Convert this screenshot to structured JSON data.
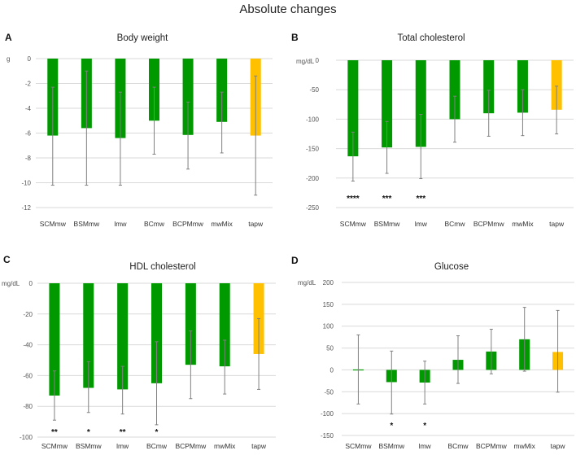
{
  "chart_data": {
    "main_title": "Absolute changes",
    "colors": {
      "green": "#009900",
      "orange": "#FFC000",
      "grid": "#D9D9D9",
      "error": "#808080"
    },
    "panels": [
      {
        "label": "A",
        "type": "bar",
        "title": "Body weight",
        "ylabel": "g",
        "categories": [
          "SCMmw",
          "BSMmw",
          "lmw",
          "BCmw",
          "BCPMmw",
          "mwMix",
          "tapw"
        ],
        "values": [
          -6.2,
          -5.6,
          -6.4,
          -5.0,
          -6.15,
          -5.1,
          -6.2
        ],
        "error_upper": [
          -2.3,
          -1.0,
          -2.7,
          -2.3,
          -3.5,
          -2.7,
          -1.4
        ],
        "error_lower": [
          -10.2,
          -10.2,
          -10.2,
          -7.7,
          -8.9,
          -7.6,
          -11.0
        ],
        "significance": [
          "",
          "",
          "",
          "",
          "",
          "",
          ""
        ],
        "ylim": [
          -12,
          0
        ],
        "yticks": [
          0,
          -2,
          -4,
          -6,
          -8,
          -10,
          -12
        ]
      },
      {
        "label": "B",
        "type": "bar",
        "title": "Total cholesterol",
        "ylabel": "mg/dL",
        "categories": [
          "SCMmw",
          "BSMmw",
          "lmw",
          "BCmw",
          "BCPMmw",
          "mwMix",
          "tapw"
        ],
        "values": [
          -163,
          -148,
          -147,
          -100,
          -90,
          -89,
          -84
        ],
        "error_upper": [
          -122,
          -104,
          -92,
          -61,
          -51,
          -50,
          -44
        ],
        "error_lower": [
          -205,
          -192,
          -201,
          -139,
          -129,
          -128,
          -125
        ],
        "significance": [
          "****",
          "***",
          "***",
          "",
          "",
          "",
          ""
        ],
        "ylim": [
          -250,
          0
        ],
        "yticks": [
          0,
          -50,
          -100,
          -150,
          -200,
          -250
        ]
      },
      {
        "label": "C",
        "type": "bar",
        "title": "HDL cholesterol",
        "ylabel": "mg/dL",
        "categories": [
          "SCMmw",
          "BSMmw",
          "lmw",
          "BCmw",
          "BCPMmw",
          "mwMix",
          "tapw"
        ],
        "values": [
          -73,
          -68,
          -69,
          -65,
          -53,
          -54,
          -46
        ],
        "error_upper": [
          -57,
          -51,
          -54,
          -38,
          -31,
          -37,
          -23
        ],
        "error_lower": [
          -89,
          -84,
          -85,
          -92,
          -75,
          -72,
          -69
        ],
        "significance": [
          "**",
          "*",
          "**",
          "*",
          "",
          "",
          ""
        ],
        "ylim": [
          -100,
          0
        ],
        "yticks": [
          0,
          -20,
          -40,
          -60,
          -80,
          -100
        ]
      },
      {
        "label": "D",
        "type": "bar",
        "title": "Glucose",
        "ylabel": "mg/dL",
        "categories": [
          "SCMmw",
          "BSMmw",
          "lmw",
          "BCmw",
          "BCPMmw",
          "mwMix",
          "tapw"
        ],
        "values": [
          1,
          -28,
          -29,
          23,
          42,
          70,
          41
        ],
        "error_upper": [
          80,
          43,
          20,
          78,
          93,
          143,
          136
        ],
        "error_lower": [
          -78,
          -101,
          -78,
          -31,
          -9,
          -3,
          -51
        ],
        "significance": [
          "",
          "*",
          "*",
          "",
          "",
          "",
          ""
        ],
        "ylim": [
          -150,
          200
        ],
        "yticks": [
          200,
          150,
          100,
          50,
          0,
          -50,
          -100,
          -150
        ]
      }
    ]
  }
}
